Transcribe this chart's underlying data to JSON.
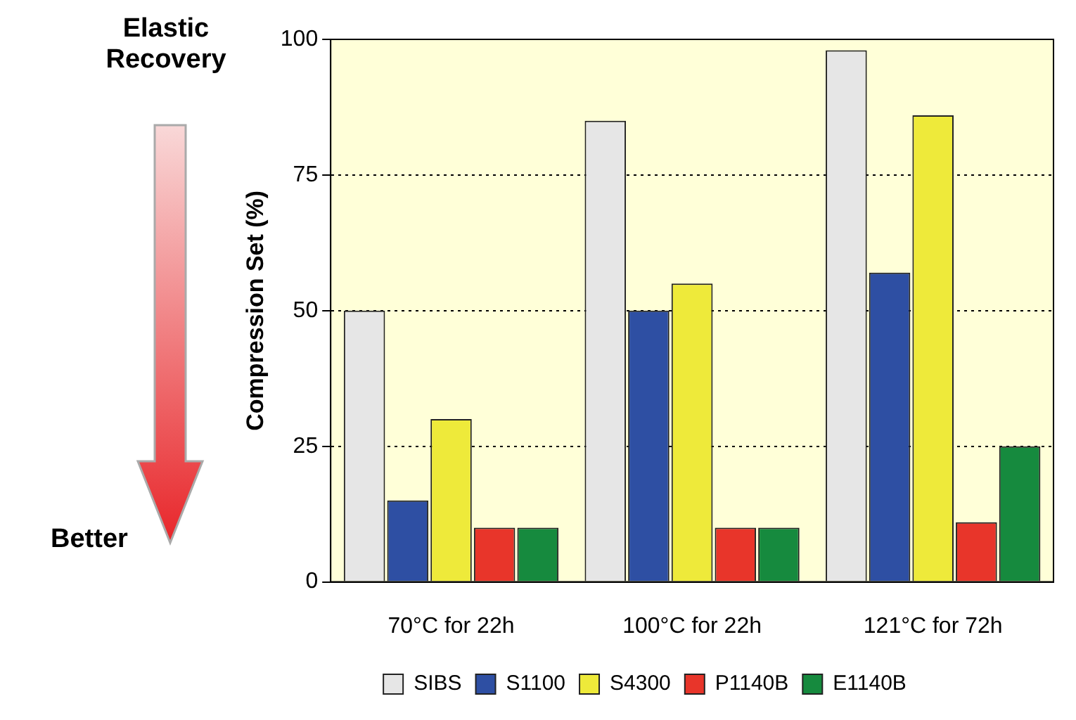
{
  "chart_data": {
    "type": "bar",
    "ylabel": "Compression Set (%)",
    "categories": [
      "70°C for 22h",
      "100°C for 22h",
      "121°C for 72h"
    ],
    "series": [
      {
        "name": "SIBS",
        "color": "#e6e6e6",
        "values": [
          50,
          85,
          98
        ]
      },
      {
        "name": "S1100",
        "color": "#2e4fa3",
        "values": [
          15,
          50,
          57
        ]
      },
      {
        "name": "S4300",
        "color": "#eeea3a",
        "values": [
          30,
          55,
          86
        ]
      },
      {
        "name": "P1140B",
        "color": "#e8352a",
        "values": [
          10,
          10,
          11
        ]
      },
      {
        "name": "E1140B",
        "color": "#168a3e",
        "values": [
          10,
          10,
          25
        ]
      }
    ],
    "ylim": [
      0,
      100
    ],
    "yticks": [
      0,
      25,
      50,
      75,
      100
    ],
    "grid": "y",
    "legend": "bottom",
    "annotations": [
      "Elastic Recovery",
      "Better"
    ]
  }
}
